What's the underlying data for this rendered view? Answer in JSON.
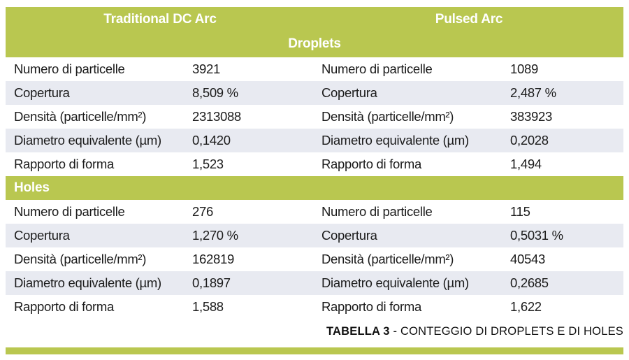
{
  "colors": {
    "accent_green": "#b9c750",
    "row_stripe": "#e8eaf1",
    "header_text": "#ffffff",
    "body_text": "#1b1b1b"
  },
  "table": {
    "column_headers": {
      "left": "Traditional DC Arc",
      "right": "Pulsed Arc"
    },
    "sections": [
      {
        "title": "Droplets",
        "rows": [
          {
            "label_left": "Numero di particelle",
            "value_left": "3921",
            "label_right": "Numero di particelle",
            "value_right": "1089"
          },
          {
            "label_left": "Copertura",
            "value_left": "8,509 %",
            "label_right": "Copertura",
            "value_right": "2,487 %"
          },
          {
            "label_left": "Densità (particelle/mm²)",
            "value_left": "2313088",
            "label_right": "Densità (particelle/mm²)",
            "value_right": "383923"
          },
          {
            "label_left": "Diametro equivalente (µm)",
            "value_left": "0,1420",
            "label_right": "Diametro equivalente (µm)",
            "value_right": "0,2028"
          },
          {
            "label_left": "Rapporto di forma",
            "value_left": "1,523",
            "label_right": "Rapporto di forma",
            "value_right": "1,494"
          }
        ]
      },
      {
        "title": "Holes",
        "rows": [
          {
            "label_left": "Numero di particelle",
            "value_left": "276",
            "label_right": "Numero di particelle",
            "value_right": "115"
          },
          {
            "label_left": "Copertura",
            "value_left": "1,270 %",
            "label_right": "Copertura",
            "value_right": "0,5031 %"
          },
          {
            "label_left": "Densità (particelle/mm²)",
            "value_left": "162819",
            "label_right": "Densità (particelle/mm²)",
            "value_right": "40543"
          },
          {
            "label_left": "Diametro equivalente (µm)",
            "value_left": "0,1897",
            "label_right": "Diametro equivalente (µm)",
            "value_right": "0,2685"
          },
          {
            "label_left": "Rapporto di forma",
            "value_left": "1,588",
            "label_right": "Rapporto di forma",
            "value_right": "1,622"
          }
        ]
      }
    ],
    "caption": {
      "bold": "TABELLA 3",
      "rest": " - CONTEGGIO DI DROPLETS E DI HOLES"
    }
  }
}
